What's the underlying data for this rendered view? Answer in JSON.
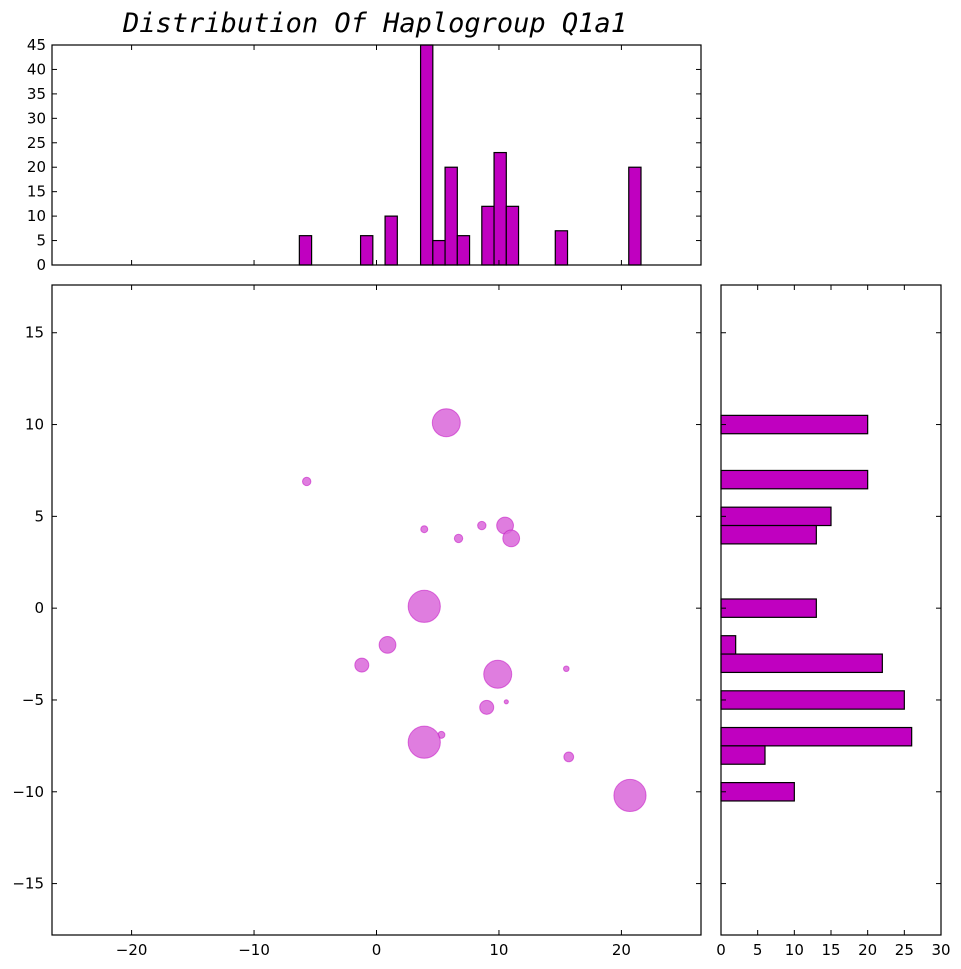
{
  "chart_data": {
    "title": "Distribution Of Haplogroup Q1a1",
    "color": "#c000c0",
    "scatter_color": "#d966d9",
    "grid": false,
    "scatter": {
      "type": "scatter",
      "xlim": [
        -26.5,
        26.5
      ],
      "ylim": [
        -17.8,
        17.6
      ],
      "x_ticks": [
        -20,
        -10,
        0,
        10,
        20
      ],
      "y_ticks": [
        -15,
        -10,
        -5,
        0,
        5,
        10,
        15
      ],
      "points": [
        {
          "x": 5.7,
          "y": 10.1,
          "size": 20
        },
        {
          "x": -5.7,
          "y": 6.9,
          "size": 6
        },
        {
          "x": 3.9,
          "y": 4.3,
          "size": 5
        },
        {
          "x": 6.7,
          "y": 3.8,
          "size": 6
        },
        {
          "x": 8.6,
          "y": 4.5,
          "size": 6
        },
        {
          "x": 10.5,
          "y": 4.5,
          "size": 12
        },
        {
          "x": 11.0,
          "y": 3.8,
          "size": 12
        },
        {
          "x": 3.9,
          "y": 0.1,
          "size": 23
        },
        {
          "x": 0.9,
          "y": -2.0,
          "size": 12
        },
        {
          "x": -1.2,
          "y": -3.1,
          "size": 10
        },
        {
          "x": 9.9,
          "y": -3.6,
          "size": 20
        },
        {
          "x": 15.5,
          "y": -3.3,
          "size": 4
        },
        {
          "x": 9.0,
          "y": -5.4,
          "size": 10
        },
        {
          "x": 10.6,
          "y": -5.1,
          "size": 3
        },
        {
          "x": 5.3,
          "y": -6.9,
          "size": 5
        },
        {
          "x": 3.9,
          "y": -7.3,
          "size": 23
        },
        {
          "x": 15.7,
          "y": -8.1,
          "size": 7
        },
        {
          "x": 20.7,
          "y": -10.2,
          "size": 23
        }
      ]
    },
    "x_histogram": {
      "type": "bar",
      "ylim": [
        0,
        45
      ],
      "y_ticks": [
        0,
        5,
        10,
        15,
        20,
        25,
        30,
        35,
        40,
        45
      ],
      "bin_width": 1.0,
      "bars": [
        {
          "x": -5.8,
          "value": 6
        },
        {
          "x": -0.8,
          "value": 6
        },
        {
          "x": 1.2,
          "value": 10
        },
        {
          "x": 4.1,
          "value": 45
        },
        {
          "x": 5.1,
          "value": 5
        },
        {
          "x": 6.1,
          "value": 20
        },
        {
          "x": 7.1,
          "value": 6
        },
        {
          "x": 9.1,
          "value": 12
        },
        {
          "x": 10.1,
          "value": 23
        },
        {
          "x": 11.1,
          "value": 12
        },
        {
          "x": 15.1,
          "value": 7
        },
        {
          "x": 21.1,
          "value": 20
        }
      ]
    },
    "y_histogram": {
      "type": "barh",
      "xlim": [
        0,
        30
      ],
      "x_ticks": [
        0,
        5,
        10,
        15,
        20,
        25,
        30
      ],
      "bin_height": 1.0,
      "bars": [
        {
          "y": 10.0,
          "value": 20
        },
        {
          "y": 7.0,
          "value": 20
        },
        {
          "y": 5.0,
          "value": 15
        },
        {
          "y": 4.0,
          "value": 13
        },
        {
          "y": 0.0,
          "value": 13
        },
        {
          "y": -2.0,
          "value": 2
        },
        {
          "y": -3.0,
          "value": 22
        },
        {
          "y": -5.0,
          "value": 25
        },
        {
          "y": -7.0,
          "value": 26
        },
        {
          "y": -8.0,
          "value": 6
        },
        {
          "y": -10.0,
          "value": 10
        }
      ]
    }
  }
}
